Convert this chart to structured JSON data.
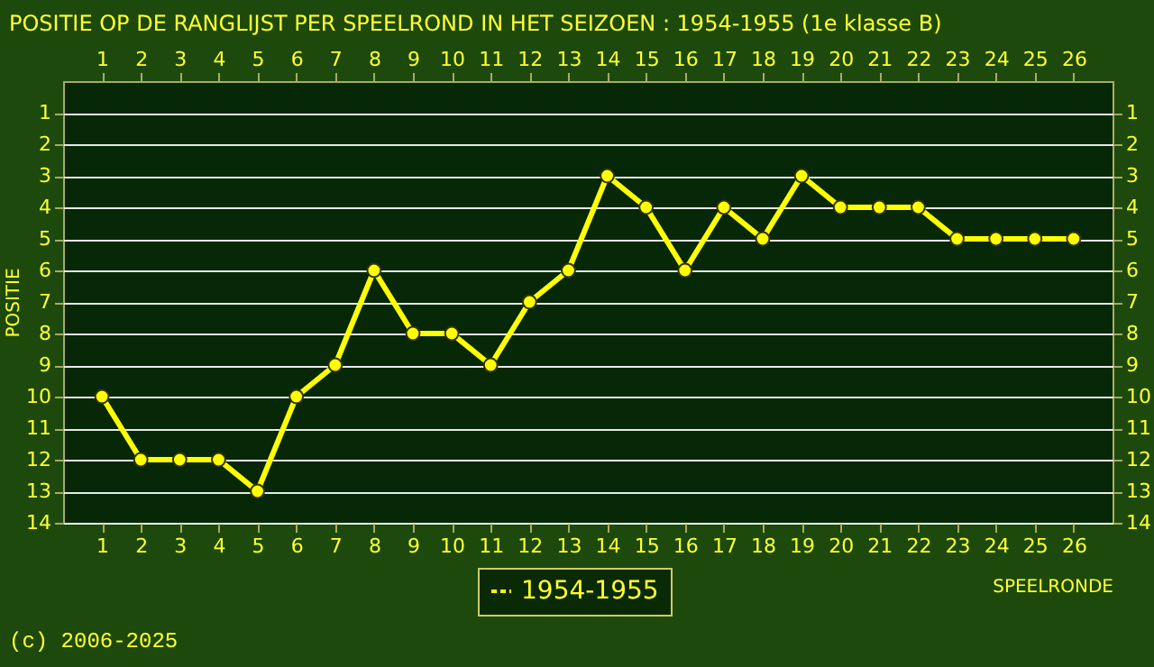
{
  "chart_data": {
    "type": "line",
    "title": "POSITIE OP DE RANGLIJST PER  SPEELROND IN HET SEIZOEN : 1954-1955 (1e klasse B)",
    "xlabel": "SPEELRONDE",
    "ylabel": "POSITIE",
    "x": [
      1,
      2,
      3,
      4,
      5,
      6,
      7,
      8,
      9,
      10,
      11,
      12,
      13,
      14,
      15,
      16,
      17,
      18,
      19,
      20,
      21,
      22,
      23,
      24,
      25,
      26
    ],
    "series": [
      {
        "name": "1954-1955",
        "color": "#ffff00",
        "values": [
          10,
          12,
          12,
          12,
          13,
          10,
          9,
          6,
          8,
          8,
          9,
          7,
          6,
          3,
          4,
          6,
          4,
          5,
          3,
          4,
          4,
          4,
          5,
          5,
          5,
          5
        ]
      }
    ],
    "xlim": [
      0,
      27
    ],
    "xticks": [
      1,
      2,
      3,
      4,
      5,
      6,
      7,
      8,
      9,
      10,
      11,
      12,
      13,
      14,
      15,
      16,
      17,
      18,
      19,
      20,
      21,
      22,
      23,
      24,
      25,
      26
    ],
    "x2lim": [
      0,
      27
    ],
    "x2ticks": [
      1,
      2,
      3,
      4,
      5,
      6,
      7,
      8,
      9,
      10,
      11,
      12,
      13,
      14,
      15,
      16,
      17,
      18,
      19,
      20,
      21,
      22,
      23,
      24,
      25,
      26
    ],
    "ylim": [
      14,
      0
    ],
    "yticks": [
      1,
      2,
      3,
      4,
      5,
      6,
      7,
      8,
      9,
      10,
      11,
      12,
      13,
      14
    ],
    "y2lim": [
      14,
      0
    ],
    "y2ticks": [
      1,
      2,
      3,
      4,
      5,
      6,
      7,
      8,
      9,
      10,
      11,
      12,
      13,
      14
    ],
    "grid": "y",
    "legend": "bottom",
    "marker": "circle",
    "line_style": "solid",
    "annotations": [
      "(c) 2006-2025"
    ]
  }
}
